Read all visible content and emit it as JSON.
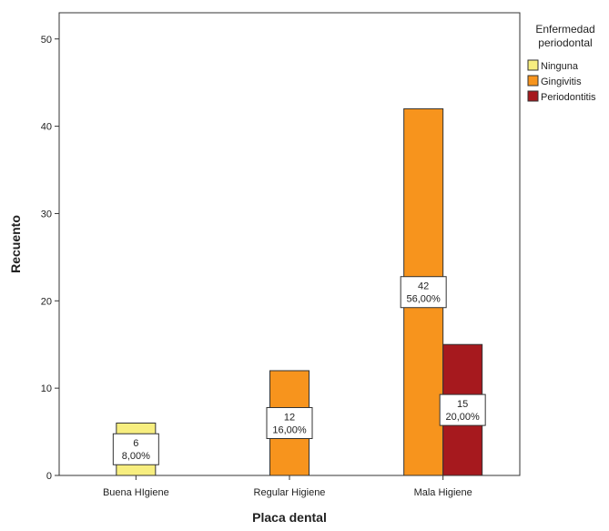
{
  "chart_data": {
    "type": "bar",
    "title": "",
    "xlabel": "Placa dental",
    "ylabel": "Recuento",
    "ylim": [
      0,
      53
    ],
    "yticks": [
      0,
      10,
      20,
      30,
      40,
      50
    ],
    "categories": [
      "Buena HIgiene",
      "Regular Higiene",
      "Mala Higiene"
    ],
    "legend": {
      "title_lines": [
        "Enfermedad",
        "periodontal"
      ],
      "position": "right"
    },
    "series": [
      {
        "name": "Ninguna",
        "color": "#F7EE7F",
        "values": [
          6,
          0,
          0
        ],
        "labels": [
          "8,00%",
          "",
          ""
        ]
      },
      {
        "name": "Gingivitis",
        "color": "#F7941D",
        "values": [
          0,
          12,
          42
        ],
        "labels": [
          "",
          "16,00%",
          "56,00%"
        ]
      },
      {
        "name": "Periodontitis",
        "color": "#A6191E",
        "values": [
          0,
          0,
          15
        ],
        "labels": [
          "",
          "",
          "20,00%"
        ]
      }
    ],
    "grid": false
  }
}
